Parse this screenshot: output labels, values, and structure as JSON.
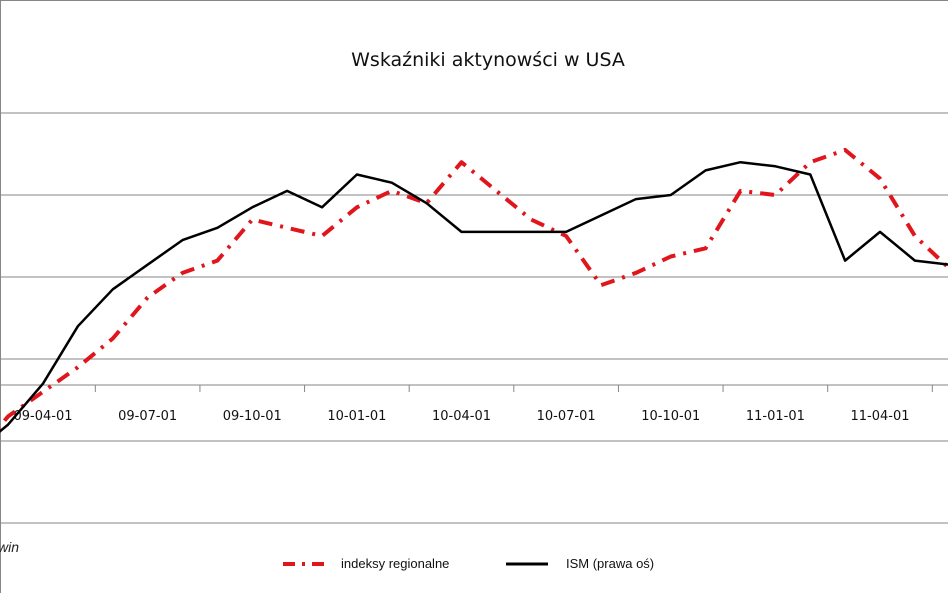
{
  "chart_data": {
    "type": "line",
    "title": "Wskaźniki aktynowści w USA",
    "source_fragment": "win",
    "x_tick_labels": [
      "09-04-01",
      "09-07-01",
      "09-10-01",
      "10-01-01",
      "10-04-01",
      "10-07-01",
      "10-10-01",
      "11-01-01",
      "11-04-01"
    ],
    "x_axis_type": "monthly",
    "x_start": "2009-01",
    "x_end": "2011-07",
    "x": [
      "2009-01",
      "2009-02",
      "2009-03",
      "2009-04",
      "2009-05",
      "2009-06",
      "2009-07",
      "2009-08",
      "2009-09",
      "2009-10",
      "2009-11",
      "2009-12",
      "2010-01",
      "2010-02",
      "2010-03",
      "2010-04",
      "2010-05",
      "2010-06",
      "2010-07",
      "2010-08",
      "2010-09",
      "2010-10",
      "2010-11",
      "2010-12",
      "2011-01",
      "2011-02",
      "2011-03",
      "2011-04",
      "2011-05",
      "2011-06",
      "2011-07"
    ],
    "y_axis_labels_visible": false,
    "y_gridlines": [
      0,
      1,
      2,
      3,
      4,
      5
    ],
    "ylim": [
      0,
      5
    ],
    "grid": true,
    "legend_position": "bottom",
    "series": [
      {
        "name": "indeksy regionalne",
        "color": "#e0161c",
        "style": "dash-dot",
        "values": [
          0.35,
          0.8,
          1.3,
          1.6,
          1.9,
          2.25,
          2.75,
          3.05,
          3.2,
          3.7,
          3.6,
          3.5,
          3.85,
          4.05,
          3.9,
          4.4,
          4.05,
          3.7,
          3.5,
          2.9,
          3.05,
          3.25,
          3.35,
          4.05,
          4.0,
          4.4,
          4.55,
          4.2,
          3.5,
          3.1,
          2.7
        ]
      },
      {
        "name": "ISM (prawa oś)",
        "color": "#000000",
        "style": "solid",
        "values": [
          0.25,
          0.85,
          1.2,
          1.7,
          2.4,
          2.85,
          3.15,
          3.45,
          3.6,
          3.85,
          4.05,
          3.85,
          4.25,
          4.15,
          3.9,
          3.55,
          3.55,
          3.55,
          3.55,
          3.75,
          3.95,
          4.0,
          4.3,
          4.4,
          4.35,
          4.25,
          3.2,
          3.55,
          3.2,
          3.15,
          3.2
        ]
      }
    ]
  }
}
